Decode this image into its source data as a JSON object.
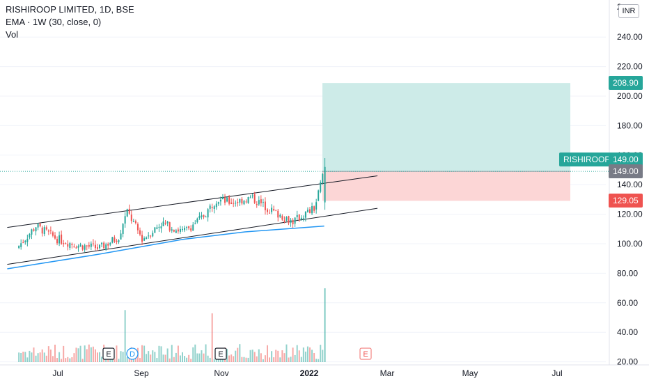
{
  "legend": {
    "title": "RISHIROOP LIMITED, 1D, BSE",
    "ema": "EMA · 1W (30, close, 0)",
    "vol": "Vol"
  },
  "currency_badge": "INR",
  "top_tick_partial": "2",
  "price_labels": {
    "target": "208.90",
    "symbol": "RISHIROOP",
    "symbol_price": "149.00",
    "entry": "149.00",
    "stop": "129.05"
  },
  "colors": {
    "up": "#26a69a",
    "down": "#ef5350",
    "ema": "#2196f3",
    "profit_zone": "#cdebe8",
    "loss_zone": "#fcd6d6",
    "entry_label": "#787b86",
    "grid": "#f0f3fa"
  },
  "event_markers": [
    {
      "letter": "E",
      "type": "earnings"
    },
    {
      "letter": "D",
      "type": "dividend"
    },
    {
      "letter": "E",
      "type": "earnings"
    },
    {
      "letter": "E",
      "type": "earnings-upcoming"
    }
  ],
  "chart_data": {
    "type": "candlestick",
    "symbol": "RISHIROOP LIMITED",
    "interval": "1D",
    "exchange": "BSE",
    "y_axis": {
      "ticks": [
        "20.00",
        "40.00",
        "60.00",
        "80.00",
        "100.00",
        "120.00",
        "140.00",
        "160.00",
        "180.00",
        "200.00",
        "220.00",
        "240.00"
      ],
      "range": [
        20,
        250
      ]
    },
    "x_axis": {
      "ticks": [
        "Jul",
        "Sep",
        "Nov",
        "2022",
        "Mar",
        "May",
        "Jul"
      ]
    },
    "close_series_approx": [
      {
        "date": "2021-06-01",
        "close": 97
      },
      {
        "date": "2021-06-15",
        "close": 112
      },
      {
        "date": "2021-07-01",
        "close": 103
      },
      {
        "date": "2021-07-15",
        "close": 99
      },
      {
        "date": "2021-08-01",
        "close": 97
      },
      {
        "date": "2021-08-15",
        "close": 105
      },
      {
        "date": "2021-08-20",
        "close": 123
      },
      {
        "date": "2021-09-01",
        "close": 103
      },
      {
        "date": "2021-09-15",
        "close": 114
      },
      {
        "date": "2021-10-01",
        "close": 108
      },
      {
        "date": "2021-10-15",
        "close": 118
      },
      {
        "date": "2021-10-25",
        "close": 130
      },
      {
        "date": "2021-11-05",
        "close": 128
      },
      {
        "date": "2021-11-20",
        "close": 131
      },
      {
        "date": "2021-12-05",
        "close": 122
      },
      {
        "date": "2021-12-20",
        "close": 115
      },
      {
        "date": "2022-01-05",
        "close": 124
      },
      {
        "date": "2022-01-12",
        "close": 150
      }
    ],
    "ema_1w_30_approx": [
      {
        "date": "2021-05-25",
        "value": 83
      },
      {
        "date": "2021-08-01",
        "value": 93
      },
      {
        "date": "2021-10-01",
        "value": 103
      },
      {
        "date": "2021-11-15",
        "value": 108
      },
      {
        "date": "2022-01-12",
        "value": 112
      }
    ],
    "channel_lines": [
      {
        "name": "upper",
        "from": {
          "date": "2021-05-25",
          "price": 111
        },
        "to": {
          "date": "2022-02-20",
          "price": 146
        }
      },
      {
        "name": "lower",
        "from": {
          "date": "2021-05-25",
          "price": 86
        },
        "to": {
          "date": "2022-02-20",
          "price": 124
        }
      }
    ],
    "long_position": {
      "entry": 149.0,
      "target": 208.9,
      "stop": 129.05
    },
    "volume_spikes": [
      "2021-08-19",
      "2021-10-22",
      "2022-01-12"
    ]
  }
}
